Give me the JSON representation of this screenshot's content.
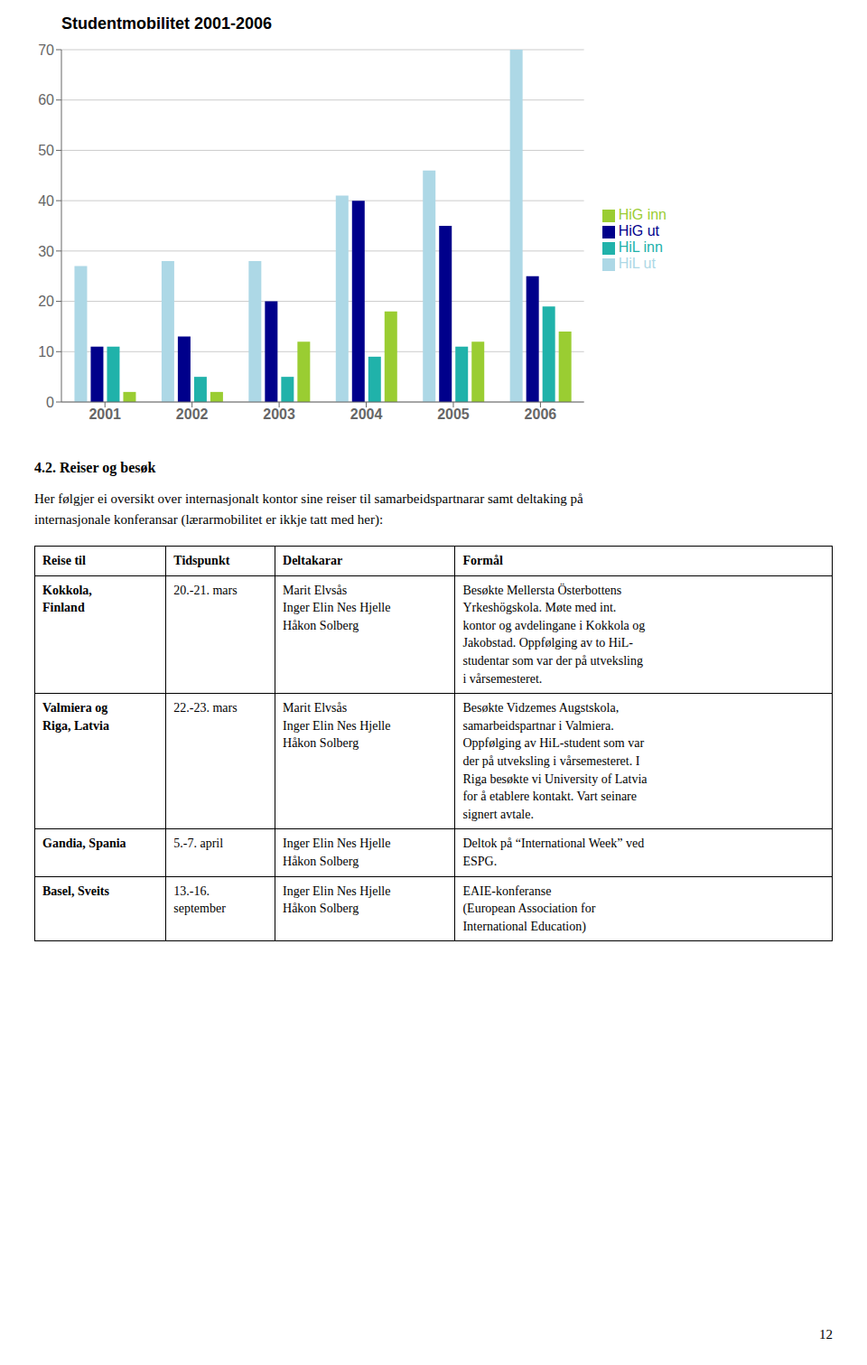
{
  "chart_data": {
    "type": "bar",
    "title": "Studentmobilitet 2001-2006",
    "categories": [
      "2001",
      "2002",
      "2003",
      "2004",
      "2005",
      "2006"
    ],
    "series": [
      {
        "name": "HiL ut",
        "color": "#ADD8E6",
        "values": [
          27,
          28,
          28,
          41,
          46,
          70
        ]
      },
      {
        "name": "HiG ut",
        "color": "#00008B",
        "values": [
          11,
          13,
          20,
          40,
          35,
          25
        ]
      },
      {
        "name": "HiL inn",
        "color": "#20B2AA",
        "values": [
          11,
          5,
          5,
          9,
          11,
          19
        ]
      },
      {
        "name": "HiG inn",
        "color": "#9ACD32",
        "values": [
          2,
          2,
          12,
          18,
          12,
          14
        ]
      }
    ],
    "ylim": [
      0,
      70
    ],
    "yticks": [
      0,
      10,
      20,
      30,
      40,
      50,
      60,
      70
    ],
    "grid": true,
    "legend": "right"
  },
  "section_title": "4.2. Reiser og besøk",
  "intro_text": "Her følgjer ei oversikt over internasjonalt kontor sine reiser til samarbeidspartnarar samt deltaking på\ninternasjonale konferansar (lærarmobilitet er ikkje tatt med her):",
  "table": {
    "headers": [
      "Reise til",
      "Tidspunkt",
      "Deltakarar",
      "Formål"
    ],
    "rows": [
      [
        "Kokkola,\nFinland",
        "20.-21. mars",
        "Marit Elvsås\nInger Elin Nes Hjelle\nHåkon Solberg",
        "Besøkte Mellersta Österbottens\nYrkeshögskola. Møte med int.\nkontor og avdelingane i Kokkola og\nJakobstad. Oppfølging av to HiL-\nstudentar som var der på utveksling\ni vårsemesteret."
      ],
      [
        "Valmiera og\nRiga, Latvia",
        "22.-23. mars",
        "Marit Elvsås\nInger Elin Nes Hjelle\nHåkon Solberg",
        "Besøkte Vidzemes Augstskola,\nsamarbeidspartnar i Valmiera.\nOppfølging av HiL-student som var\nder på utveksling i vårsemesteret. I\nRiga besøkte vi University of Latvia\nfor å etablere kontakt. Vart seinare\nsignert avtale."
      ],
      [
        "Gandia, Spania",
        "5.-7. april",
        "Inger Elin Nes Hjelle\nHåkon Solberg",
        "Deltok på “International Week” ved\nESPG."
      ],
      [
        "Basel, Sveits",
        "13.-16.\nseptember",
        "Inger Elin Nes Hjelle\nHåkon Solberg",
        "EAIE-konferanse\n(European Association for\nInternational Education)"
      ]
    ]
  },
  "page_number": "12"
}
